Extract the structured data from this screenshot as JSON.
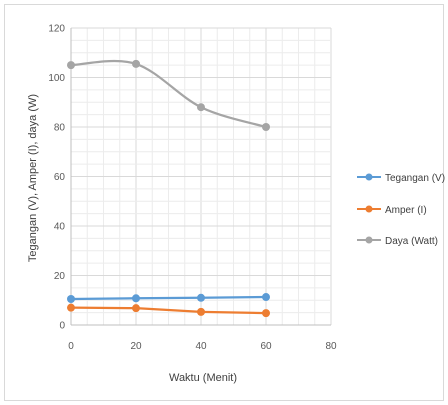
{
  "chart_data": {
    "type": "scatter",
    "title": "",
    "xlabel": "Waktu (Menit)",
    "ylabel": "Tegangan (V), Amper (I), daya (W)",
    "xlim": [
      0,
      80
    ],
    "ylim": [
      0,
      120
    ],
    "x_ticks": [
      "0",
      "20",
      "40",
      "60",
      "80"
    ],
    "y_ticks": [
      "0",
      "20",
      "40",
      "60",
      "80",
      "100",
      "120"
    ],
    "grid": true,
    "legend_position": "right",
    "series": [
      {
        "name": "Tegangan (V)",
        "color": "#5b9bd5",
        "smooth": false,
        "x": [
          0,
          20,
          40,
          60
        ],
        "y": [
          10.5,
          10.8,
          11.0,
          11.3
        ]
      },
      {
        "name": "Amper (I)",
        "color": "#ed7d31",
        "smooth": false,
        "x": [
          0,
          20,
          40,
          60
        ],
        "y": [
          7.0,
          6.8,
          5.3,
          4.8
        ]
      },
      {
        "name": "Daya (Watt)",
        "color": "#a5a5a5",
        "smooth": true,
        "x": [
          0,
          20,
          40,
          60
        ],
        "y": [
          105,
          105.5,
          88,
          80
        ]
      }
    ]
  }
}
